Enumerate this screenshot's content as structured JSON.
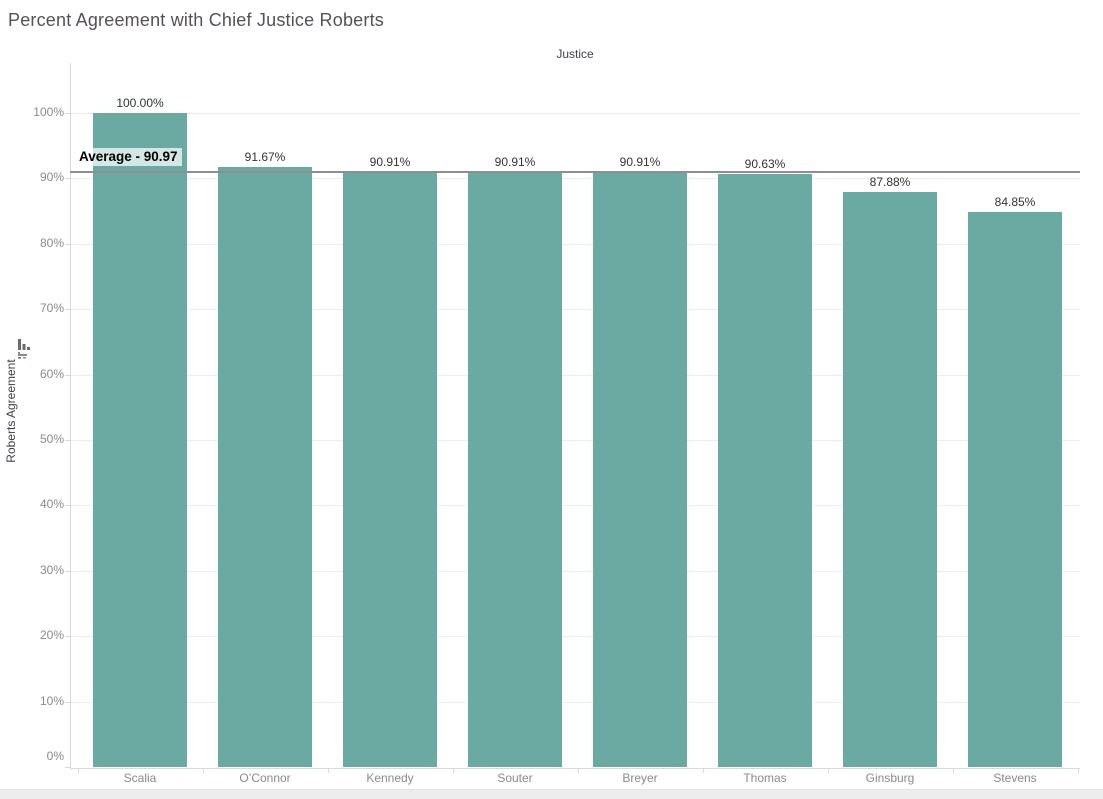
{
  "page": {
    "title": "Percent Agreement with Chief Justice Roberts"
  },
  "chart_data": {
    "type": "bar",
    "title": "Percent Agreement with Chief Justice Roberts",
    "column_field_header": "Justice",
    "xlabel": "",
    "ylabel": "Roberts Agreement",
    "categories": [
      "Scalia",
      "O’Connor",
      "Kennedy",
      "Souter",
      "Breyer",
      "Thomas",
      "Ginsburg",
      "Stevens"
    ],
    "values": [
      100.0,
      91.67,
      90.91,
      90.91,
      90.91,
      90.63,
      87.88,
      84.85
    ],
    "value_labels": [
      "100.00%",
      "91.67%",
      "90.91%",
      "90.91%",
      "90.91%",
      "90.63%",
      "87.88%",
      "84.85%"
    ],
    "ylim": [
      0,
      100
    ],
    "y_tick_step": 10,
    "y_tick_labels": [
      "0%",
      "10%",
      "20%",
      "30%",
      "40%",
      "50%",
      "60%",
      "70%",
      "80%",
      "90%",
      "100%"
    ],
    "grid": true,
    "legend": "none",
    "bar_color": "#6aaaa3",
    "reference_line": {
      "label": "Average - 90.97",
      "value": 90.97,
      "color": "#8e8e8e"
    },
    "sort": "descending",
    "sort_icon_colors": {
      "bars": "#6b6b6b",
      "accent_blue": "#4e79a7",
      "accent_orange": "#e8762c"
    }
  }
}
